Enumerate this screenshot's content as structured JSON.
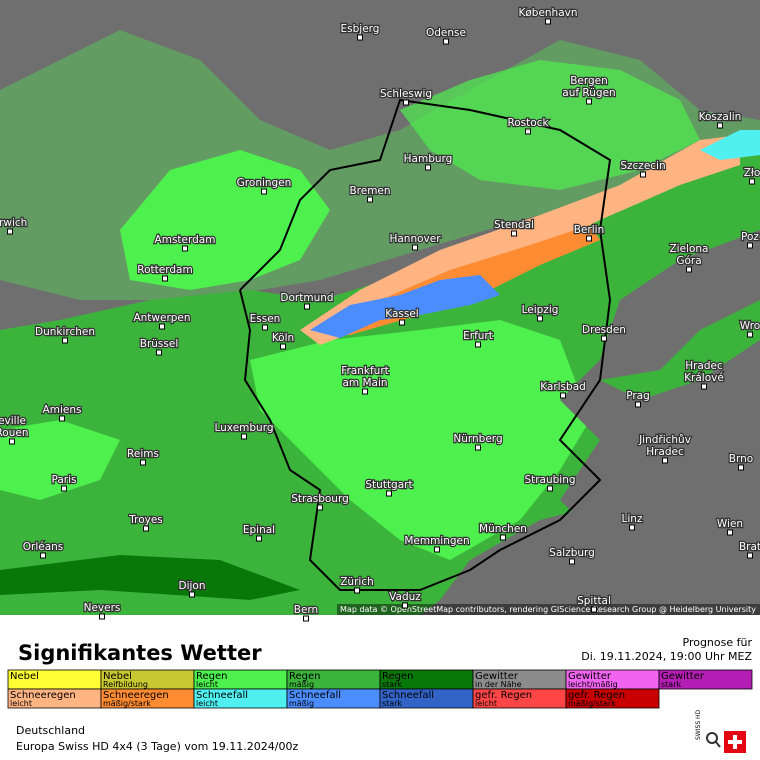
{
  "map": {
    "cities": [
      "Esbjerg",
      "Odense",
      "København",
      "Schleswig",
      [
        "Bergen",
        "auf Rügen"
      ],
      "Rostock",
      "Koszalin",
      "Hamburg",
      "Szczecin",
      "Zło",
      "Groningen",
      "Bremen",
      "orwich",
      "Amsterdam",
      "Hannover",
      "Stendal",
      "Berlin",
      "Poz",
      "Rotterdam",
      [
        "Zielona",
        "Góra"
      ],
      "Dortmund",
      "Essen",
      "Kassel",
      "Leipzig",
      "Antwerpen",
      "Dunkirchen",
      "Köln",
      "Erfurt",
      "Dresden",
      "Wro",
      [
        "Hradec",
        "Králové"
      ],
      "Brüssel",
      [
        "Frankfurt",
        "am Main"
      ],
      "Karlsbad",
      "Prag",
      "Amiens",
      "Luxemburg",
      "Nürnberg",
      [
        "eville",
        "Rouen"
      ],
      [
        "Jindřichův",
        "Hradec"
      ],
      "Brno",
      "Reims",
      "Paris",
      "Stuttgart",
      "Straubing",
      "Strasbourg",
      "Troyes",
      "München",
      "Linz",
      "Wien",
      "Epinal",
      "Orléans",
      "Memmingen",
      "Salzburg",
      "Brat",
      "Dijon",
      "Zürich",
      "Vaduz",
      "Nevers",
      "Bern",
      "Spittal"
    ],
    "attribution": "Map data © OpenStreetMap contributors, rendering GIScience Research Group @ Heidelberg University"
  },
  "header": {
    "title": "Signifikantes Wetter",
    "forecast_label": "Prognose für",
    "forecast_time": "Di. 19.11.2024, 19:00 Uhr MEZ"
  },
  "legend": [
    {
      "label": "Nebel",
      "color": "#ffff33"
    },
    {
      "label": "Nebel",
      "sublabel": "Reifbildung",
      "color": "#c8c832"
    },
    {
      "label": "Regen",
      "sublabel": "leicht",
      "color": "#4ef04e"
    },
    {
      "label": "Regen",
      "sublabel": "mäßig",
      "color": "#3cb43c"
    },
    {
      "label": "Regen",
      "sublabel": "stark",
      "color": "#087808"
    },
    {
      "label": "Gewitter",
      "sublabel": "in der Nähe",
      "color": "#8c8c8c"
    },
    {
      "label": "Gewitter",
      "sublabel": "leicht/mäßig",
      "color": "#f064f0"
    },
    {
      "label": "Gewitter",
      "sublabel": "stark",
      "color": "#b41eb4"
    },
    {
      "label": "Schneeregen",
      "sublabel": "leicht",
      "color": "#ffb482"
    },
    {
      "label": "Schneeregen",
      "sublabel": "mäßig/stark",
      "color": "#ff8c32"
    },
    {
      "label": "Schneefall",
      "sublabel": "leicht",
      "color": "#50f0f0"
    },
    {
      "label": "Schneefall",
      "sublabel": "mäßig",
      "color": "#4b8cff"
    },
    {
      "label": "Schneefall",
      "sublabel": "stark",
      "color": "#3264c8"
    },
    {
      "label": "gefr. Regen",
      "sublabel": "leicht",
      "color": "#ff4646"
    },
    {
      "label": "gefr. Regen",
      "sublabel": "mäßig/stark",
      "color": "#c80000"
    }
  ],
  "footer": {
    "region": "Deutschland",
    "model": "Europa Swiss HD 4x4 (3 Tage) vom 19.11.2024/00z"
  },
  "logo": "SWISS HD"
}
